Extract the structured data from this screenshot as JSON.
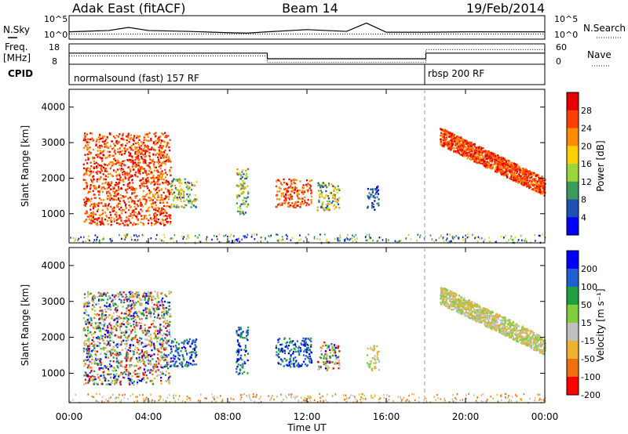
{
  "header": {
    "station": "Adak East (fitACF)",
    "beam": "Beam 14",
    "date": "19/Feb/2014"
  },
  "labels": {
    "nsky": "N.Sky",
    "nsearch": "N.Search",
    "freq_line1": "Freq.",
    "freq_line2": "[MHz]",
    "nave": "Nave",
    "cpid": "CPID",
    "cpid_segments": [
      "normalsound (fast) 157 RF",
      "rbsp 200 RF"
    ],
    "noise_ticks_left": [
      "10^5",
      "10^0"
    ],
    "noise_ticks_right": [
      "10^5",
      "10^0"
    ],
    "freq_ticks": [
      "18",
      "8"
    ],
    "nave_ticks": [
      "60",
      "0"
    ]
  },
  "chart_data": [
    {
      "type": "line",
      "name": "noise",
      "series": [
        {
          "name": "N.Sky",
          "x": [
            0,
            2,
            3,
            4,
            6,
            8,
            9,
            10,
            12,
            14,
            15,
            16,
            18,
            20,
            22,
            24
          ],
          "y": [
            1.5,
            1.8,
            2.5,
            1.8,
            1.6,
            1.3,
            1.2,
            1.5,
            2.0,
            1.6,
            3.5,
            1.4,
            1.4,
            1.5,
            1.5,
            1.5
          ]
        },
        {
          "name": "N.Search",
          "x": [
            0,
            4,
            8,
            12,
            16,
            20,
            24
          ],
          "y": [
            1.0,
            1.0,
            1.0,
            1.0,
            1.0,
            1.0,
            1.0
          ]
        }
      ],
      "ylabel_left": "N.Sky",
      "ylabel_right": "N.Search"
    },
    {
      "type": "line",
      "name": "frequency",
      "series": [
        {
          "name": "Freq.",
          "x": [
            0,
            10,
            10,
            18,
            18,
            24
          ],
          "y": [
            13.5,
            13.5,
            10.5,
            10.5,
            13.5,
            13.5
          ]
        },
        {
          "name": "Nave",
          "x": [
            0,
            10,
            10,
            18,
            18,
            24
          ],
          "y": [
            24,
            24,
            3,
            3,
            44,
            44
          ]
        }
      ],
      "y_left_range": [
        8,
        18
      ],
      "y_right_range": [
        0,
        60
      ]
    },
    {
      "type": "heatmap",
      "name": "power",
      "ylabel": "Slant Range [km]",
      "xlabel": "Time UT",
      "x_ticks": [
        "00:00",
        "04:00",
        "08:00",
        "12:00",
        "16:00",
        "20:00",
        "00:00"
      ],
      "y_ticks": [
        1000,
        2000,
        3000,
        4000
      ],
      "xlim_hours": [
        0,
        24
      ],
      "ylim_km": [
        180,
        4500
      ],
      "colorbar_label": "Power [dB]",
      "colorbar_ticks": [
        "28",
        "24",
        "20",
        "16",
        "12",
        "8",
        "4"
      ],
      "colorbar_colors": [
        "#e60000",
        "#ff4000",
        "#ff8c00",
        "#ffd000",
        "#9ad63c",
        "#3c9a5a",
        "#2050b4",
        "#0000ff"
      ],
      "regions": [
        {
          "t": [
            0.7,
            5.1
          ],
          "r": [
            700,
            3300
          ],
          "level": "high"
        },
        {
          "t": [
            5.1,
            6.4
          ],
          "r": [
            1200,
            2000
          ],
          "level": "mid"
        },
        {
          "t": [
            8.4,
            9.0
          ],
          "r": [
            1000,
            2300
          ],
          "level": "mid"
        },
        {
          "t": [
            10.4,
            12.2
          ],
          "r": [
            1200,
            2000
          ],
          "level": "high"
        },
        {
          "t": [
            12.5,
            13.6
          ],
          "r": [
            1100,
            1900
          ],
          "level": "mid"
        },
        {
          "t": [
            15.0,
            15.6
          ],
          "r": [
            1100,
            1800
          ],
          "level": "low"
        },
        {
          "t": [
            18.7,
            24.0
          ],
          "r": [
            1300,
            3200
          ],
          "level": "high"
        }
      ]
    },
    {
      "type": "heatmap",
      "name": "velocity",
      "ylabel": "Slant Range [km]",
      "xlabel": "Time UT",
      "x_ticks": [
        "00:00",
        "04:00",
        "08:00",
        "12:00",
        "16:00",
        "20:00",
        "00:00"
      ],
      "y_ticks": [
        1000,
        2000,
        3000,
        4000
      ],
      "xlim_hours": [
        0,
        24
      ],
      "ylim_km": [
        180,
        4500
      ],
      "colorbar_label": "Velocity [m s⁻¹]",
      "colorbar_ticks": [
        "200",
        "100",
        "50",
        "15",
        "-15",
        "-50",
        "-100",
        "-200"
      ],
      "colorbar_colors": [
        "#0000ff",
        "#1f5fd2",
        "#1f9f3f",
        "#7fcf3f",
        "#c0c0c0",
        "#f0b030",
        "#f07010",
        "#ff0000"
      ],
      "regions": [
        {
          "t": [
            0.7,
            5.1
          ],
          "r": [
            700,
            3300
          ],
          "level": "mixed"
        },
        {
          "t": [
            5.1,
            6.4
          ],
          "r": [
            1200,
            2000
          ],
          "level": "positive"
        },
        {
          "t": [
            8.4,
            9.0
          ],
          "r": [
            1000,
            2300
          ],
          "level": "positive"
        },
        {
          "t": [
            10.4,
            12.2
          ],
          "r": [
            1200,
            2000
          ],
          "level": "positive"
        },
        {
          "t": [
            12.5,
            13.6
          ],
          "r": [
            1100,
            1900
          ],
          "level": "mixed"
        },
        {
          "t": [
            15.0,
            15.6
          ],
          "r": [
            1100,
            1800
          ],
          "level": "near-zero"
        },
        {
          "t": [
            18.7,
            24.0
          ],
          "r": [
            1300,
            3200
          ],
          "level": "near-zero"
        }
      ]
    }
  ]
}
